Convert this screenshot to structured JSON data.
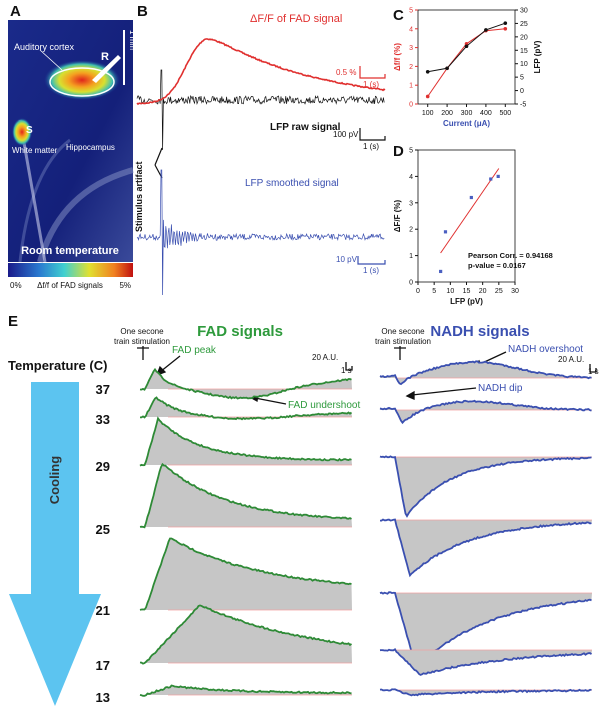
{
  "panel_labels": [
    "A",
    "B",
    "C",
    "D",
    "E"
  ],
  "panel_a": {
    "auditory_cortex": "Auditory cortex",
    "r": "R",
    "s": "S",
    "white_matter": "White matter",
    "hippocampus": "Hippocampus",
    "condition": "Room temperature",
    "scale": "1 mm",
    "colorbar_min": "0%",
    "colorbar_label": "Δf/f of FAD signals",
    "colorbar_max": "5%"
  },
  "panel_b": {
    "fad_title": "ΔF/F of FAD signal",
    "fad_scale": "0.5 %",
    "fad_time": "1 (s)",
    "raw_title": "LFP raw signal",
    "raw_scale": "100 pV",
    "raw_time": "1 (s)",
    "artifact": "Stimulus artifact",
    "smoothed_title": "LFP smoothed signal",
    "smoothed_scale": "10 pV",
    "smoothed_time": "1 (s)"
  },
  "chart_data": [
    {
      "type": "line",
      "xlabel": "Current (μA)",
      "ylabel": "Δf/f (%)",
      "y2label": "LFP (pV)",
      "x": [
        100,
        200,
        300,
        400,
        500
      ],
      "xlim": [
        50,
        550
      ],
      "xticks": [
        100,
        200,
        300,
        400,
        500
      ],
      "ylim": [
        0,
        5
      ],
      "yticks": [
        0,
        1,
        2,
        3,
        4,
        5
      ],
      "y2lim": [
        -5,
        30
      ],
      "y2ticks": [
        -5,
        0,
        5,
        10,
        15,
        20,
        25,
        30
      ],
      "series": [
        {
          "color": "#e0302f",
          "values": [
            0.4,
            1.9,
            3.2,
            3.9,
            4.0
          ]
        },
        {
          "color": "#111111",
          "axis": "y2",
          "values": [
            7,
            8.3,
            16.5,
            22.6,
            25.1
          ]
        }
      ]
    },
    {
      "type": "scatter",
      "xlabel": "LFP (pV)",
      "ylabel": "ΔF/F (%)",
      "x": [
        7,
        8.5,
        16.5,
        22.5,
        24.8
      ],
      "values": [
        0.4,
        1.9,
        3.2,
        3.9,
        4.0
      ],
      "color": "#4a5fc1",
      "xlim": [
        0,
        30
      ],
      "xticks": [
        0,
        5,
        10,
        15,
        20,
        25,
        30
      ],
      "ylim": [
        0,
        5
      ],
      "yticks": [
        0,
        1,
        2,
        3,
        4,
        5
      ],
      "trendline": {
        "x": [
          7,
          25
        ],
        "values": [
          1.1,
          4.3
        ],
        "color": "#e0302f"
      },
      "annotations": [
        "Pearson Corr. = 0.94168",
        "p-value = 0.0167"
      ]
    }
  ],
  "panel_e": {
    "temperature_title": "Temperature (C)",
    "cooling": "Cooling",
    "temperatures": [
      37,
      33,
      29,
      25,
      21,
      17,
      13
    ],
    "fad": {
      "title": "FAD signals",
      "stimulation": [
        "One secone",
        "train stimulation"
      ],
      "peak": "FAD peak",
      "undershoot": "FAD undershoot",
      "scale": "20 A.U.",
      "time": "1 s"
    },
    "nadh": {
      "title": "NADH signals",
      "stimulation": [
        "One secone",
        "train stimulation"
      ],
      "overshoot": "NADH overshoot",
      "dip": "NADH dip",
      "scale": "20 A.U.",
      "time": "1 s"
    }
  }
}
